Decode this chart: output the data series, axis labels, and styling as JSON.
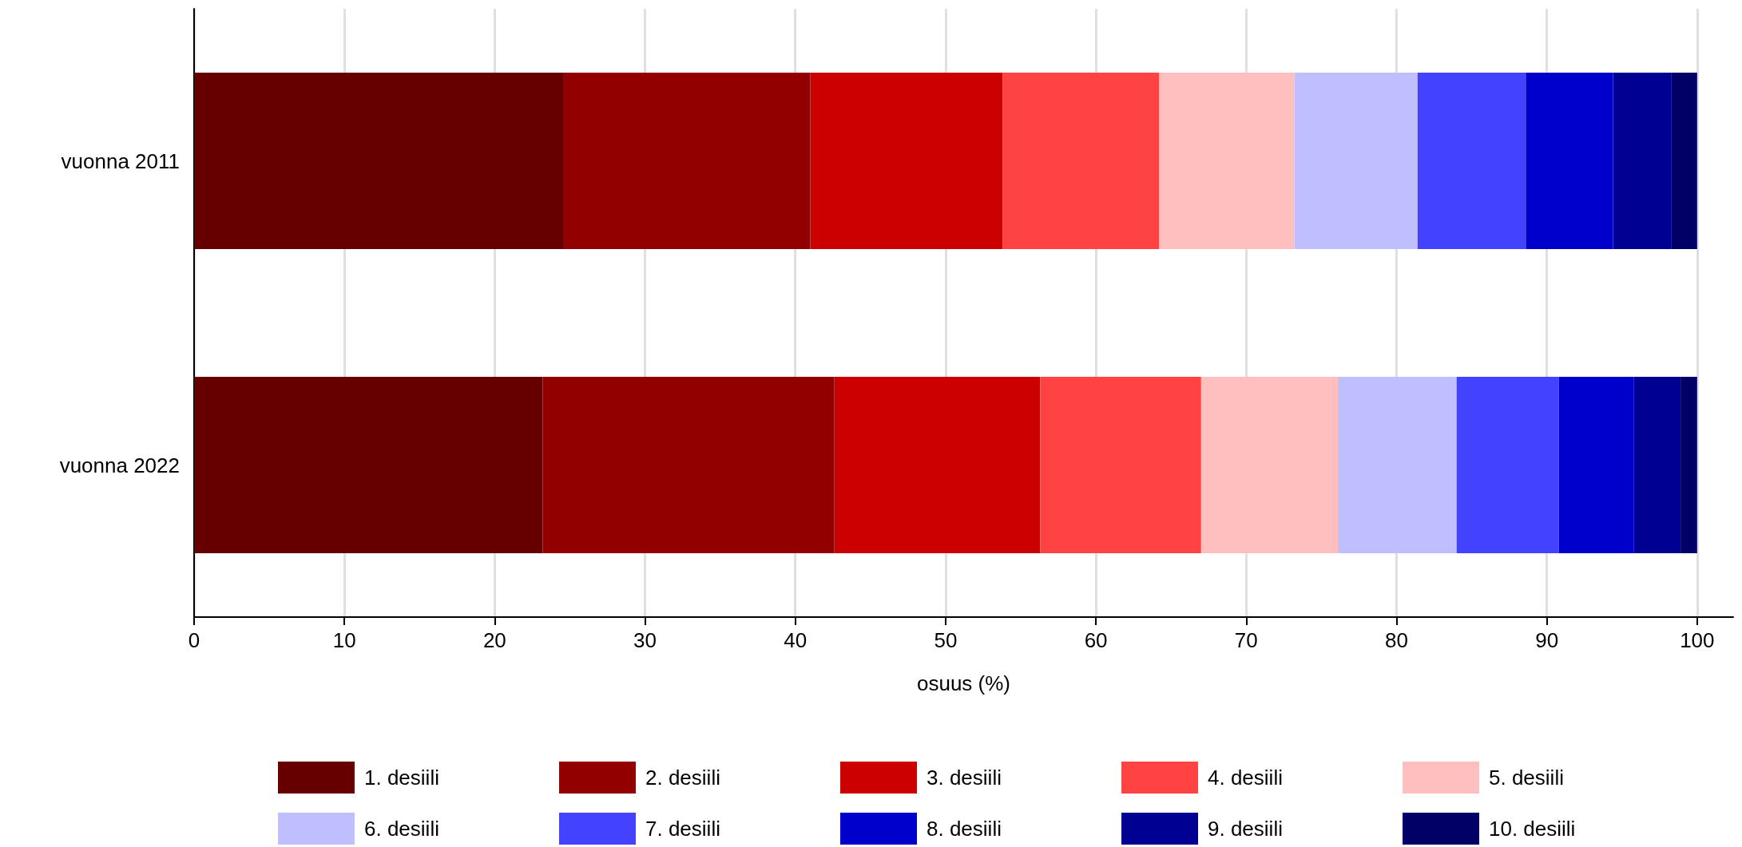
{
  "chart_data": {
    "type": "bar",
    "orientation": "horizontal",
    "stacked": true,
    "categories": [
      "vuonna 2011",
      "vuonna 2022"
    ],
    "series": [
      {
        "name": "1. desiili",
        "color": "#660000",
        "values": [
          24.6,
          23.2
        ]
      },
      {
        "name": "2. desiili",
        "color": "#930000",
        "values": [
          16.4,
          19.4
        ]
      },
      {
        "name": "3. desiili",
        "color": "#cc0000",
        "values": [
          12.8,
          13.7
        ]
      },
      {
        "name": "4. desiili",
        "color": "#ff4343",
        "values": [
          10.4,
          10.7
        ]
      },
      {
        "name": "5. desiili",
        "color": "#ffbfbf",
        "values": [
          9.0,
          9.1
        ]
      },
      {
        "name": "6. desiili",
        "color": "#bfbfff",
        "values": [
          8.2,
          7.9
        ]
      },
      {
        "name": "7. desiili",
        "color": "#4343ff",
        "values": [
          7.2,
          6.8
        ]
      },
      {
        "name": "8. desiili",
        "color": "#0000cc",
        "values": [
          5.8,
          5.0
        ]
      },
      {
        "name": "9. desiili",
        "color": "#000093",
        "values": [
          3.9,
          3.1
        ]
      },
      {
        "name": "10. desiili",
        "color": "#000066",
        "values": [
          1.7,
          1.1
        ]
      }
    ],
    "xlabel": "osuus (%)",
    "xlim": [
      0,
      102.4
    ],
    "xticks": [
      0,
      10,
      20,
      30,
      40,
      50,
      60,
      70,
      80,
      90,
      100
    ],
    "grid": "x",
    "legend": "bottom"
  }
}
